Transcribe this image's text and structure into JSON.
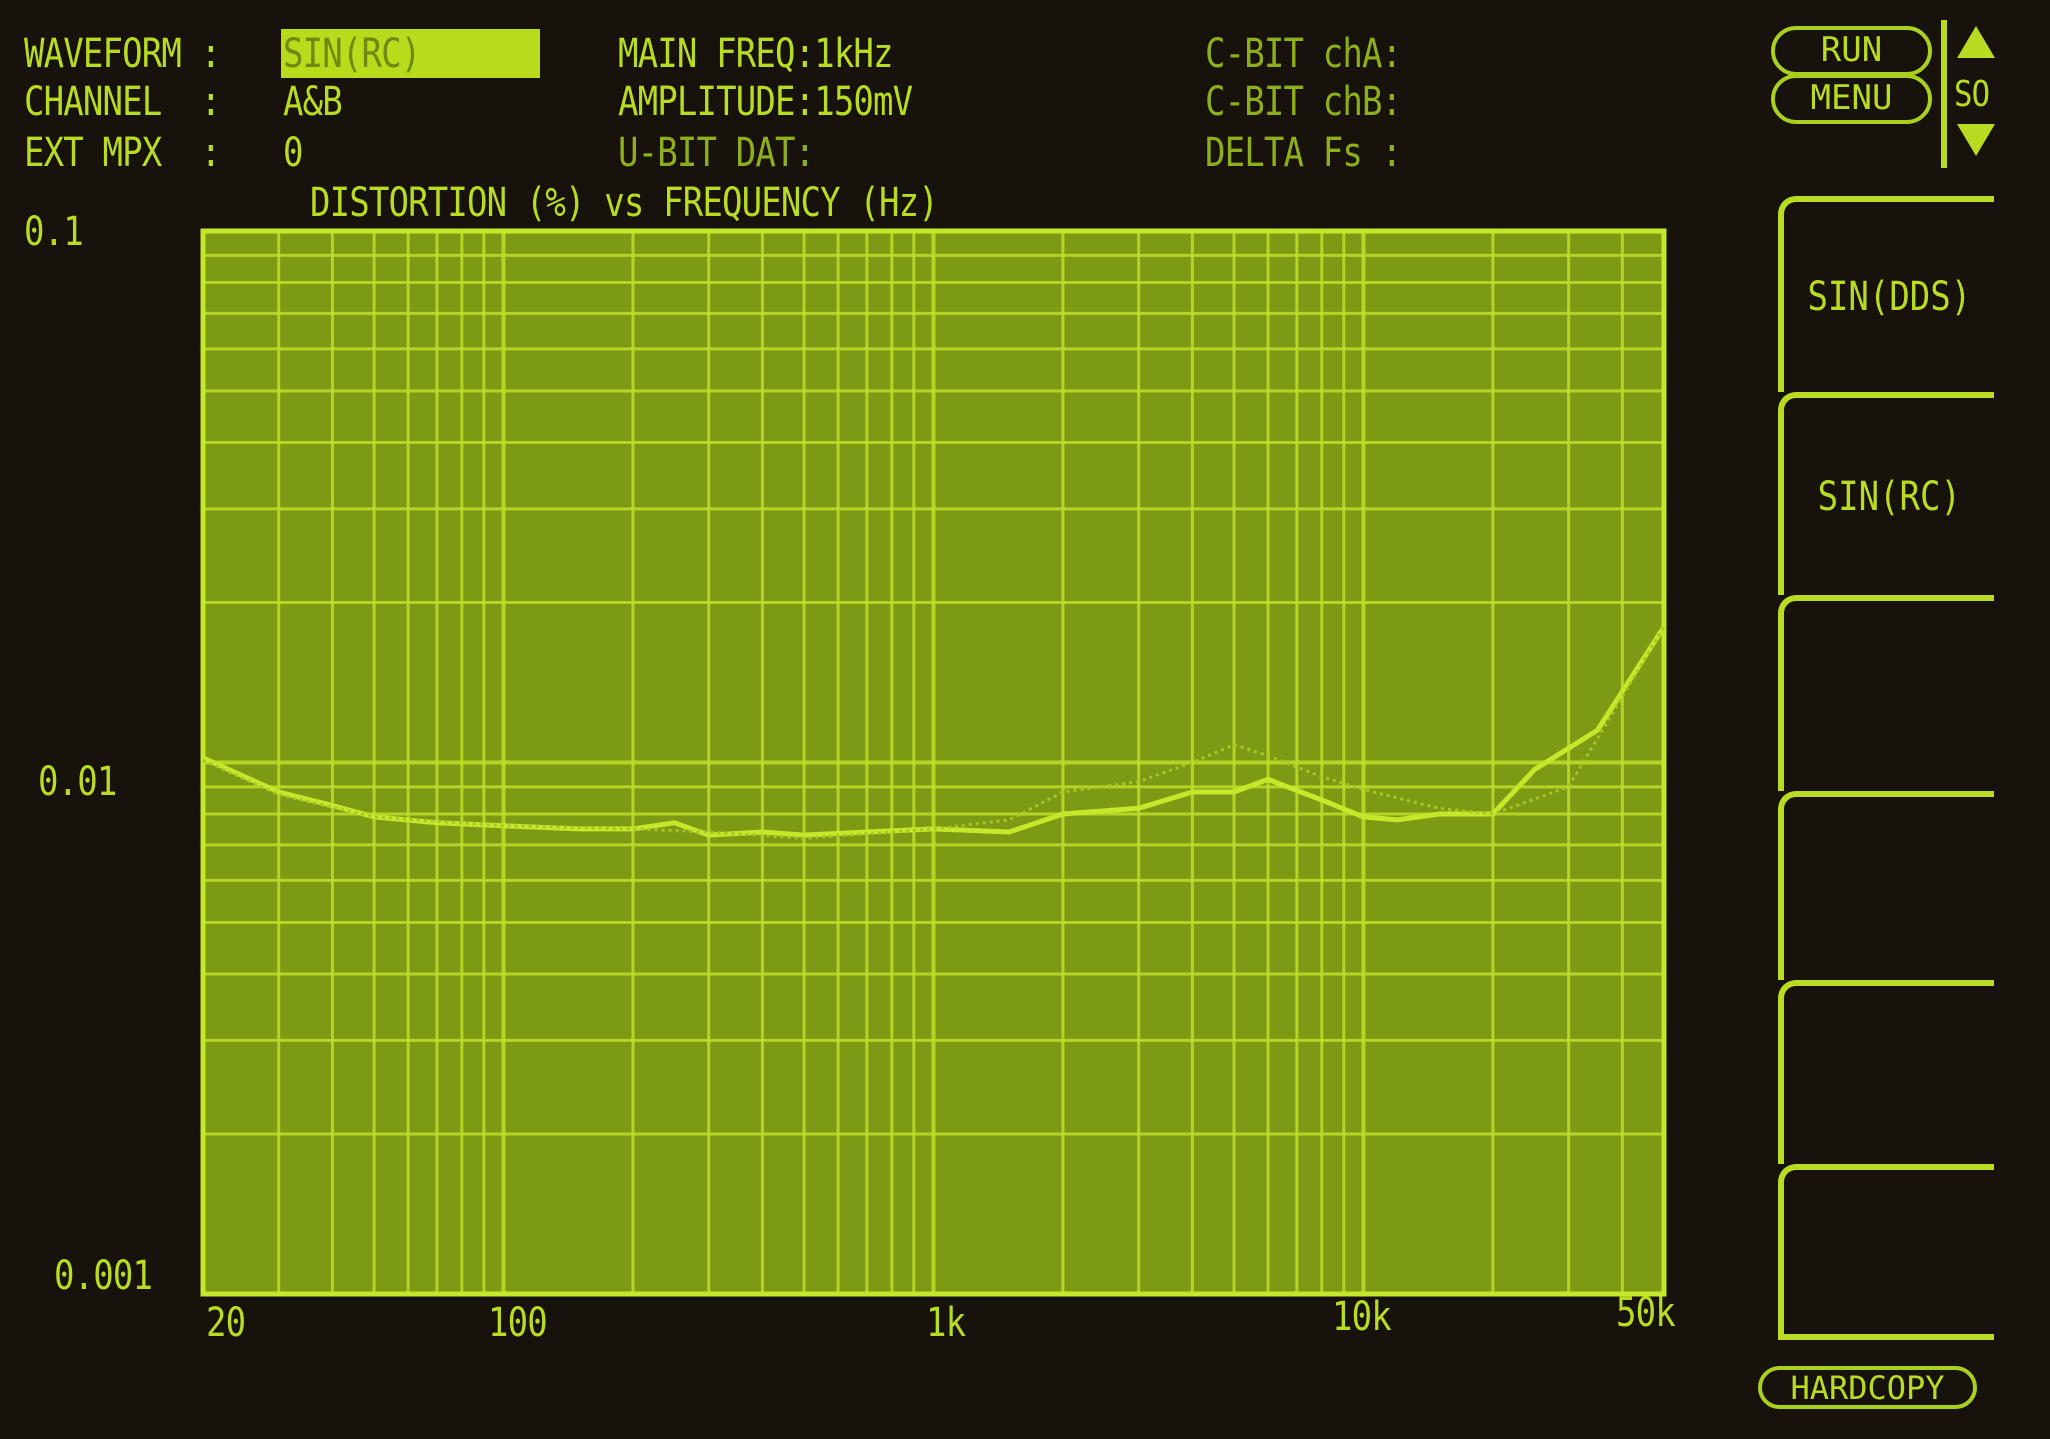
{
  "header": {
    "waveform_label": "WAVEFORM :",
    "waveform_value": "SIN(RC)",
    "channel_label": "CHANNEL  :",
    "channel_value": "A&B",
    "ext_mpx_label": "EXT MPX  :",
    "ext_mpx_value": "0",
    "main_freq": "MAIN FREQ:1kHz",
    "amplitude": "AMPLITUDE:150mV",
    "u_bit": "U-BIT DAT:",
    "c_bit_a": "C-BIT chA:",
    "c_bit_b": "C-BIT chB:",
    "delta_fs": "DELTA Fs :"
  },
  "controls": {
    "run": "RUN",
    "menu": "MENU",
    "so": "SO",
    "up_icon": "triangle-up",
    "down_icon": "triangle-down",
    "hardcopy": "HARDCOPY"
  },
  "softkeys": [
    "SIN(DDS)",
    "SIN(RC)",
    "",
    "",
    "",
    ""
  ],
  "colors": {
    "background": "#17120b",
    "plot_fill": "#7d9a14",
    "trace": "#c4e82a",
    "text": "#b9dc22"
  },
  "chart_data": {
    "type": "line",
    "title": "DISTORTION (%) vs FREQUENCY (Hz)",
    "xscale": "log",
    "yscale": "log",
    "xlim": [
      20,
      50000
    ],
    "ylim": [
      0.001,
      0.1
    ],
    "x_tick_labels": [
      "20",
      "100",
      "1k",
      "10k",
      "50k"
    ],
    "x_ticks": [
      20,
      100,
      1000,
      10000,
      50000
    ],
    "y_tick_labels": [
      "0.1",
      "0.01",
      "0.001"
    ],
    "y_ticks": [
      0.1,
      0.01,
      0.001
    ],
    "grid": true,
    "series": [
      {
        "style": "solid",
        "x": [
          20,
          30,
          40,
          50,
          70,
          100,
          150,
          200,
          250,
          300,
          400,
          500,
          700,
          1000,
          1500,
          2000,
          3000,
          4000,
          5000,
          6000,
          8000,
          10000,
          12000,
          15000,
          20000,
          25000,
          35000,
          50000
        ],
        "y": [
          0.0102,
          0.0088,
          0.0083,
          0.0079,
          0.0077,
          0.0076,
          0.0075,
          0.0075,
          0.0077,
          0.0073,
          0.0074,
          0.0073,
          0.0074,
          0.0075,
          0.0074,
          0.008,
          0.0082,
          0.0088,
          0.0088,
          0.0093,
          0.0085,
          0.0079,
          0.0078,
          0.008,
          0.008,
          0.0097,
          0.0115,
          0.018
        ]
      },
      {
        "style": "dotted",
        "x": [
          20,
          30,
          50,
          100,
          200,
          300,
          500,
          1000,
          1500,
          2000,
          3000,
          4000,
          5000,
          6000,
          8000,
          10000,
          15000,
          20000,
          30000,
          50000
        ],
        "y": [
          0.0101,
          0.0087,
          0.0079,
          0.0076,
          0.0075,
          0.0074,
          0.0072,
          0.0075,
          0.0078,
          0.0088,
          0.0092,
          0.01,
          0.0108,
          0.0103,
          0.0094,
          0.0089,
          0.0082,
          0.008,
          0.009,
          0.018
        ]
      }
    ]
  }
}
